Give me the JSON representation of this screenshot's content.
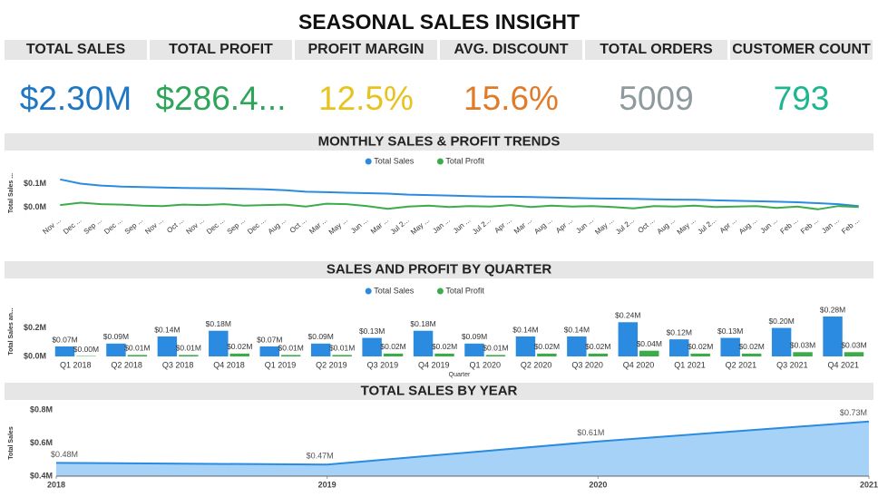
{
  "title": "SEASONAL SALES INSIGHT",
  "kpis": [
    {
      "label": "TOTAL SALES",
      "value": "$2.30M",
      "color": "#1f77c4"
    },
    {
      "label": "TOTAL PROFIT",
      "value": "$286.4...",
      "color": "#2ea55a"
    },
    {
      "label": "PROFIT MARGIN",
      "value": "12.5%",
      "color": "#e8c21e"
    },
    {
      "label": "AVG. DISCOUNT",
      "value": "15.6%",
      "color": "#e07b2a"
    },
    {
      "label": "TOTAL ORDERS",
      "value": "5009",
      "color": "#8e9a9e"
    },
    {
      "label": "CUSTOMER COUNT",
      "value": "793",
      "color": "#1fb58f"
    }
  ],
  "chart_data": [
    {
      "type": "line",
      "title": "MONTHLY SALES & PROFIT TRENDS",
      "ylabel": "Total Sales ...",
      "legend": "top",
      "categories": [
        "Nov ...",
        "Dec ...",
        "Sep ...",
        "Dec ...",
        "Sep ...",
        "Nov ...",
        "Oct ...",
        "Nov ...",
        "Dec ...",
        "Sep ...",
        "Dec ...",
        "Aug ...",
        "Oct ...",
        "Mar ...",
        "May ...",
        "Jun ...",
        "Mar ...",
        "Jul 2...",
        "May ...",
        "Jan ...",
        "Jun ...",
        "Jul 2...",
        "Apr ...",
        "Mar ...",
        "Aug ...",
        "Apr ...",
        "Jun ...",
        "May ...",
        "Jul 2...",
        "Oct ...",
        "Aug ...",
        "May ...",
        "Jul 2...",
        "Apr ...",
        "Aug ...",
        "Jun ...",
        "Feb ...",
        "Feb ...",
        "Jan ...",
        "Feb ..."
      ],
      "series": [
        {
          "name": "Total Sales",
          "color": "#2a8be0",
          "values": [
            118000,
            100000,
            92000,
            88000,
            86000,
            84000,
            82000,
            81000,
            80000,
            78000,
            76000,
            72000,
            66000,
            64000,
            62000,
            60000,
            58000,
            54000,
            52000,
            50000,
            48000,
            46000,
            45000,
            44000,
            42000,
            40000,
            38000,
            37000,
            36000,
            34000,
            33000,
            32000,
            30000,
            28000,
            26000,
            24000,
            22000,
            18000,
            14000,
            6000
          ]
        },
        {
          "name": "Total Profit",
          "color": "#3cac4a",
          "values": [
            10000,
            20000,
            14000,
            12000,
            8000,
            6000,
            12000,
            10000,
            14000,
            8000,
            10000,
            12000,
            4000,
            16000,
            14000,
            6000,
            -6000,
            4000,
            8000,
            2000,
            6000,
            4000,
            10000,
            2000,
            8000,
            4000,
            6000,
            2000,
            -4000,
            6000,
            4000,
            8000,
            2000,
            4000,
            6000,
            -2000,
            4000,
            -8000,
            6000,
            2000
          ]
        }
      ],
      "ylim": [
        -20000,
        140000
      ],
      "yticks": [
        {
          "value": 0,
          "label": "$0.0M"
        },
        {
          "value": 100000,
          "label": "$0.1M"
        }
      ]
    },
    {
      "type": "bar",
      "title": "SALES AND PROFIT BY QUARTER",
      "ylabel": "Total Sales an...",
      "xlabel": "Quarter",
      "legend": "top",
      "categories": [
        "Q1 2018",
        "Q2 2018",
        "Q3 2018",
        "Q4 2018",
        "Q1 2019",
        "Q2 2019",
        "Q3 2019",
        "Q4 2019",
        "Q1 2020",
        "Q2 2020",
        "Q3 2020",
        "Q4 2020",
        "Q1 2021",
        "Q2 2021",
        "Q3 2021",
        "Q4 2021"
      ],
      "series": [
        {
          "name": "Total Sales",
          "color": "#2a8be0",
          "values": [
            70000,
            90000,
            140000,
            180000,
            70000,
            90000,
            130000,
            180000,
            90000,
            140000,
            140000,
            240000,
            120000,
            130000,
            200000,
            280000
          ],
          "value_labels": [
            "$0.07M",
            "$0.09M",
            "$0.14M",
            "$0.18M",
            "$0.07M",
            "$0.09M",
            "$0.13M",
            "$0.18M",
            "$0.09M",
            "$0.14M",
            "$0.14M",
            "$0.24M",
            "$0.12M",
            "$0.13M",
            "$0.20M",
            "$0.28M"
          ]
        },
        {
          "name": "Total Profit",
          "color": "#3cac4a",
          "values": [
            3000,
            10000,
            10000,
            20000,
            10000,
            10000,
            20000,
            20000,
            10000,
            20000,
            20000,
            40000,
            20000,
            20000,
            30000,
            30000
          ],
          "value_labels": [
            "$0.00M",
            "$0.01M",
            "$0.01M",
            "$0.02M",
            "$0.01M",
            "$0.01M",
            "$0.02M",
            "$0.02M",
            "$0.01M",
            "$0.02M",
            "$0.02M",
            "$0.04M",
            "$0.02M",
            "$0.02M",
            "$0.03M",
            "$0.03M"
          ]
        }
      ],
      "ylim": [
        0,
        350000
      ],
      "yticks": [
        {
          "value": 0,
          "label": "$0.0M"
        },
        {
          "value": 200000,
          "label": "$0.2M"
        }
      ]
    },
    {
      "type": "area",
      "title": "TOTAL SALES BY YEAR",
      "ylabel": "Total Sales",
      "x": [
        2018,
        2019,
        2020,
        2021
      ],
      "values": [
        480000,
        470000,
        610000,
        730000
      ],
      "value_labels": [
        "$0.48M",
        "$0.47M",
        "$0.61M",
        "$0.73M"
      ],
      "color": "#2a8be0",
      "fill": "#a6d2f7",
      "xlim": [
        2018,
        2021
      ],
      "xticks": [
        2018,
        2019,
        2020,
        2021
      ],
      "ylim": [
        400000,
        800000
      ],
      "yticks": [
        {
          "value": 400000,
          "label": "$0.4M"
        },
        {
          "value": 600000,
          "label": "$0.6M"
        },
        {
          "value": 800000,
          "label": "$0.8M"
        }
      ]
    }
  ]
}
